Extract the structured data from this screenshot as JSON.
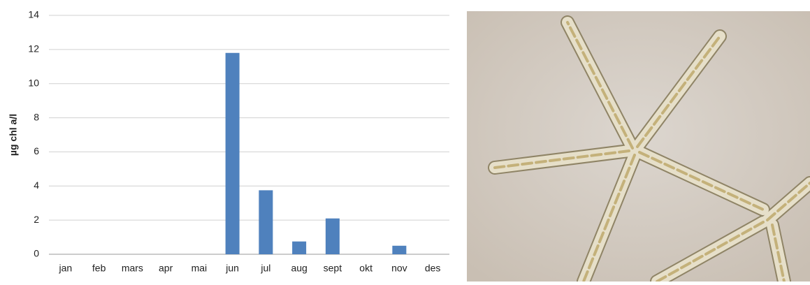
{
  "chart_data": {
    "type": "bar",
    "ylabel": "µg chl a/l",
    "categories": [
      "jan",
      "feb",
      "mars",
      "apr",
      "mai",
      "jun",
      "jul",
      "aug",
      "sept",
      "okt",
      "nov",
      "des"
    ],
    "values": [
      0,
      0,
      0,
      0,
      0,
      11.8,
      3.75,
      0.75,
      2.1,
      0,
      0.5,
      0
    ],
    "color": "#4f81bd",
    "ylim": [
      0,
      14
    ],
    "yticks": [
      0,
      2,
      4,
      6,
      8,
      10,
      12,
      14
    ],
    "grid": true
  }
}
